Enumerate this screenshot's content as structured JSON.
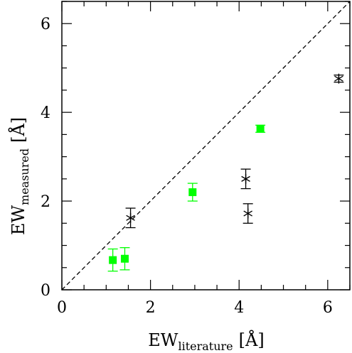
{
  "chart_data": {
    "type": "scatter",
    "xlabel": {
      "main": "EW",
      "sub": "literature",
      "unit": "[Å]"
    },
    "ylabel": {
      "main": "EW",
      "sub": "measured",
      "unit": "[Å]"
    },
    "xlim": [
      0,
      6.5
    ],
    "ylim": [
      0,
      6.5
    ],
    "x_ticks": [
      "0",
      "2",
      "4",
      "6"
    ],
    "y_ticks": [
      "0",
      "2",
      "4",
      "6"
    ],
    "reference_line": {
      "style": "dashed",
      "x": [
        0,
        6.5
      ],
      "y": [
        0,
        6.5
      ]
    },
    "grid": false,
    "series": [
      {
        "marker": "square",
        "color": "#00ff00",
        "points": [
          {
            "x": 1.15,
            "y": 0.67,
            "yerr": 0.25
          },
          {
            "x": 1.42,
            "y": 0.7,
            "yerr": 0.25
          },
          {
            "x": 2.95,
            "y": 2.2,
            "yerr": 0.2
          },
          {
            "x": 4.48,
            "y": 3.63,
            "yerr": 0.08
          }
        ]
      },
      {
        "marker": "asterisk",
        "color": "#000000",
        "points": [
          {
            "x": 1.55,
            "y": 1.62,
            "yerr": 0.22
          },
          {
            "x": 4.15,
            "y": 2.5,
            "yerr": 0.22
          },
          {
            "x": 4.2,
            "y": 1.72,
            "yerr": 0.22
          },
          {
            "x": 6.25,
            "y": 4.76,
            "yerr": 0.08
          }
        ]
      }
    ]
  }
}
